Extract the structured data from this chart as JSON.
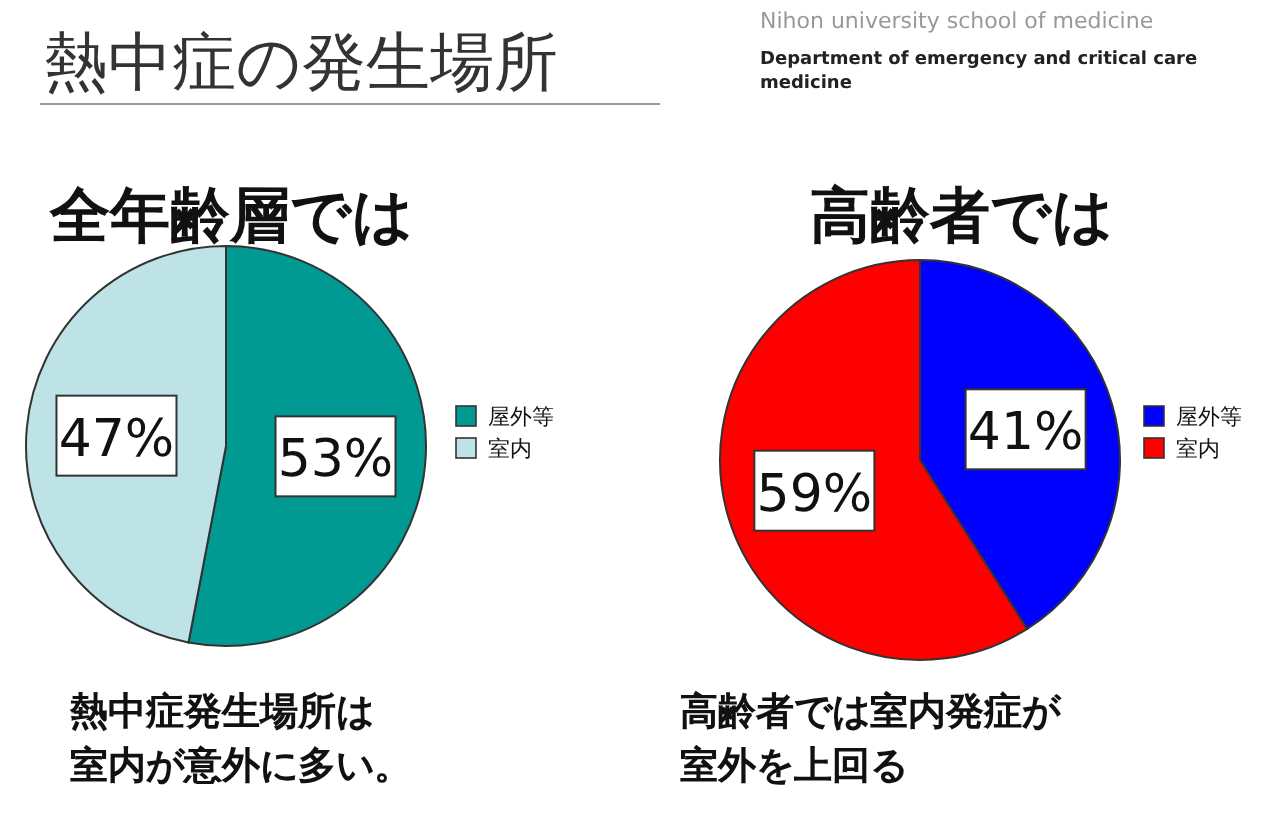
{
  "chart_data": [
    {
      "type": "other",
      "title": "熱中症の発生場所",
      "annotations": [
        "Nihon university school of medicine",
        "Department of emergency and critical care medicine"
      ]
    },
    {
      "type": "pie",
      "title": "全年齢層では",
      "categories": [
        "屋外等",
        "室内"
      ],
      "values": [
        53,
        47
      ],
      "colors": [
        "#009a93",
        "#bde3e6"
      ],
      "value_labels": [
        "53%",
        "47%"
      ],
      "legend": "right",
      "annotations": [
        "熱中症発生場所は",
        "室内が意外に多い。"
      ]
    },
    {
      "type": "pie",
      "title": "高齢者では",
      "categories": [
        "屋外等",
        "室内"
      ],
      "values": [
        41,
        59
      ],
      "colors": [
        "#0000ff",
        "#ff0000"
      ],
      "value_labels": [
        "41%",
        "59%"
      ],
      "legend": "right",
      "annotations": [
        "高齢者では室内発症が",
        "室外を上回る"
      ]
    }
  ]
}
